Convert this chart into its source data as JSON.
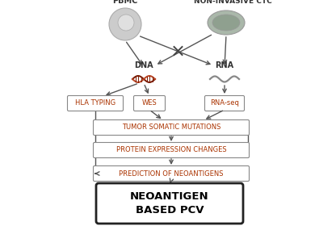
{
  "bg_color": "#ffffff",
  "pbmc_label": "PBMC",
  "ctc_label": "NON-INVASIVE CTC",
  "dna_label": "DNA",
  "rna_label": "RNA",
  "box_hla": "HLA TYPING",
  "box_wes": "WES",
  "box_rnaseq": "RNA-seq",
  "box_tumor": "TUMOR SOMATIC MUTATIONS",
  "box_protein": "PROTEIN EXPRESSION CHANGES",
  "box_prediction": "PREDICTION OF NEOANTIGENS",
  "box_final": "NEOANTIGEN\nBASED PCV",
  "text_color_boxes": "#aa3300",
  "arrow_color": "#555555",
  "cell_pbmc_outer": "#cccccc",
  "cell_pbmc_inner": "#e0e0e0",
  "cell_ctc_outer": "#aab8aa",
  "cell_ctc_inner": "#8fa08f",
  "dna_color1": "#7a1a00",
  "dna_color2": "#bb4422",
  "rna_color": "#888888",
  "box_edge": "#888888",
  "label_color": "#333333",
  "final_edge": "#222222"
}
